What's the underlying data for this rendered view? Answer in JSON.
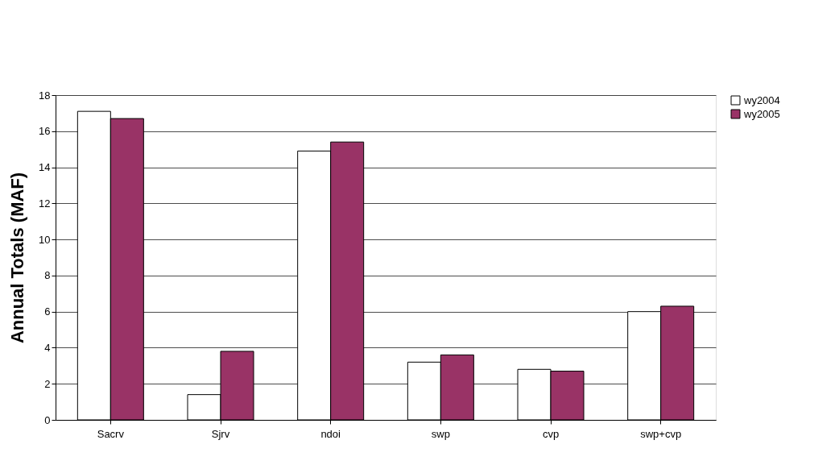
{
  "chart_data": {
    "type": "bar",
    "ylabel": "Annual Totals (MAF)",
    "categories": [
      "Sacrv",
      "Sjrv",
      "ndoi",
      "swp",
      "cvp",
      "swp+cvp"
    ],
    "series": [
      {
        "name": "wy2004",
        "color": "#ffffff",
        "values": [
          17.1,
          1.4,
          14.9,
          3.2,
          2.8,
          6.0
        ]
      },
      {
        "name": "wy2005",
        "color": "#993366",
        "values": [
          16.7,
          3.8,
          15.4,
          3.6,
          2.7,
          6.3
        ]
      }
    ],
    "ylim": [
      0,
      18
    ],
    "yticks": [
      0,
      2,
      4,
      6,
      8,
      10,
      12,
      14,
      16,
      18
    ],
    "grid": "y",
    "legend": "right"
  }
}
